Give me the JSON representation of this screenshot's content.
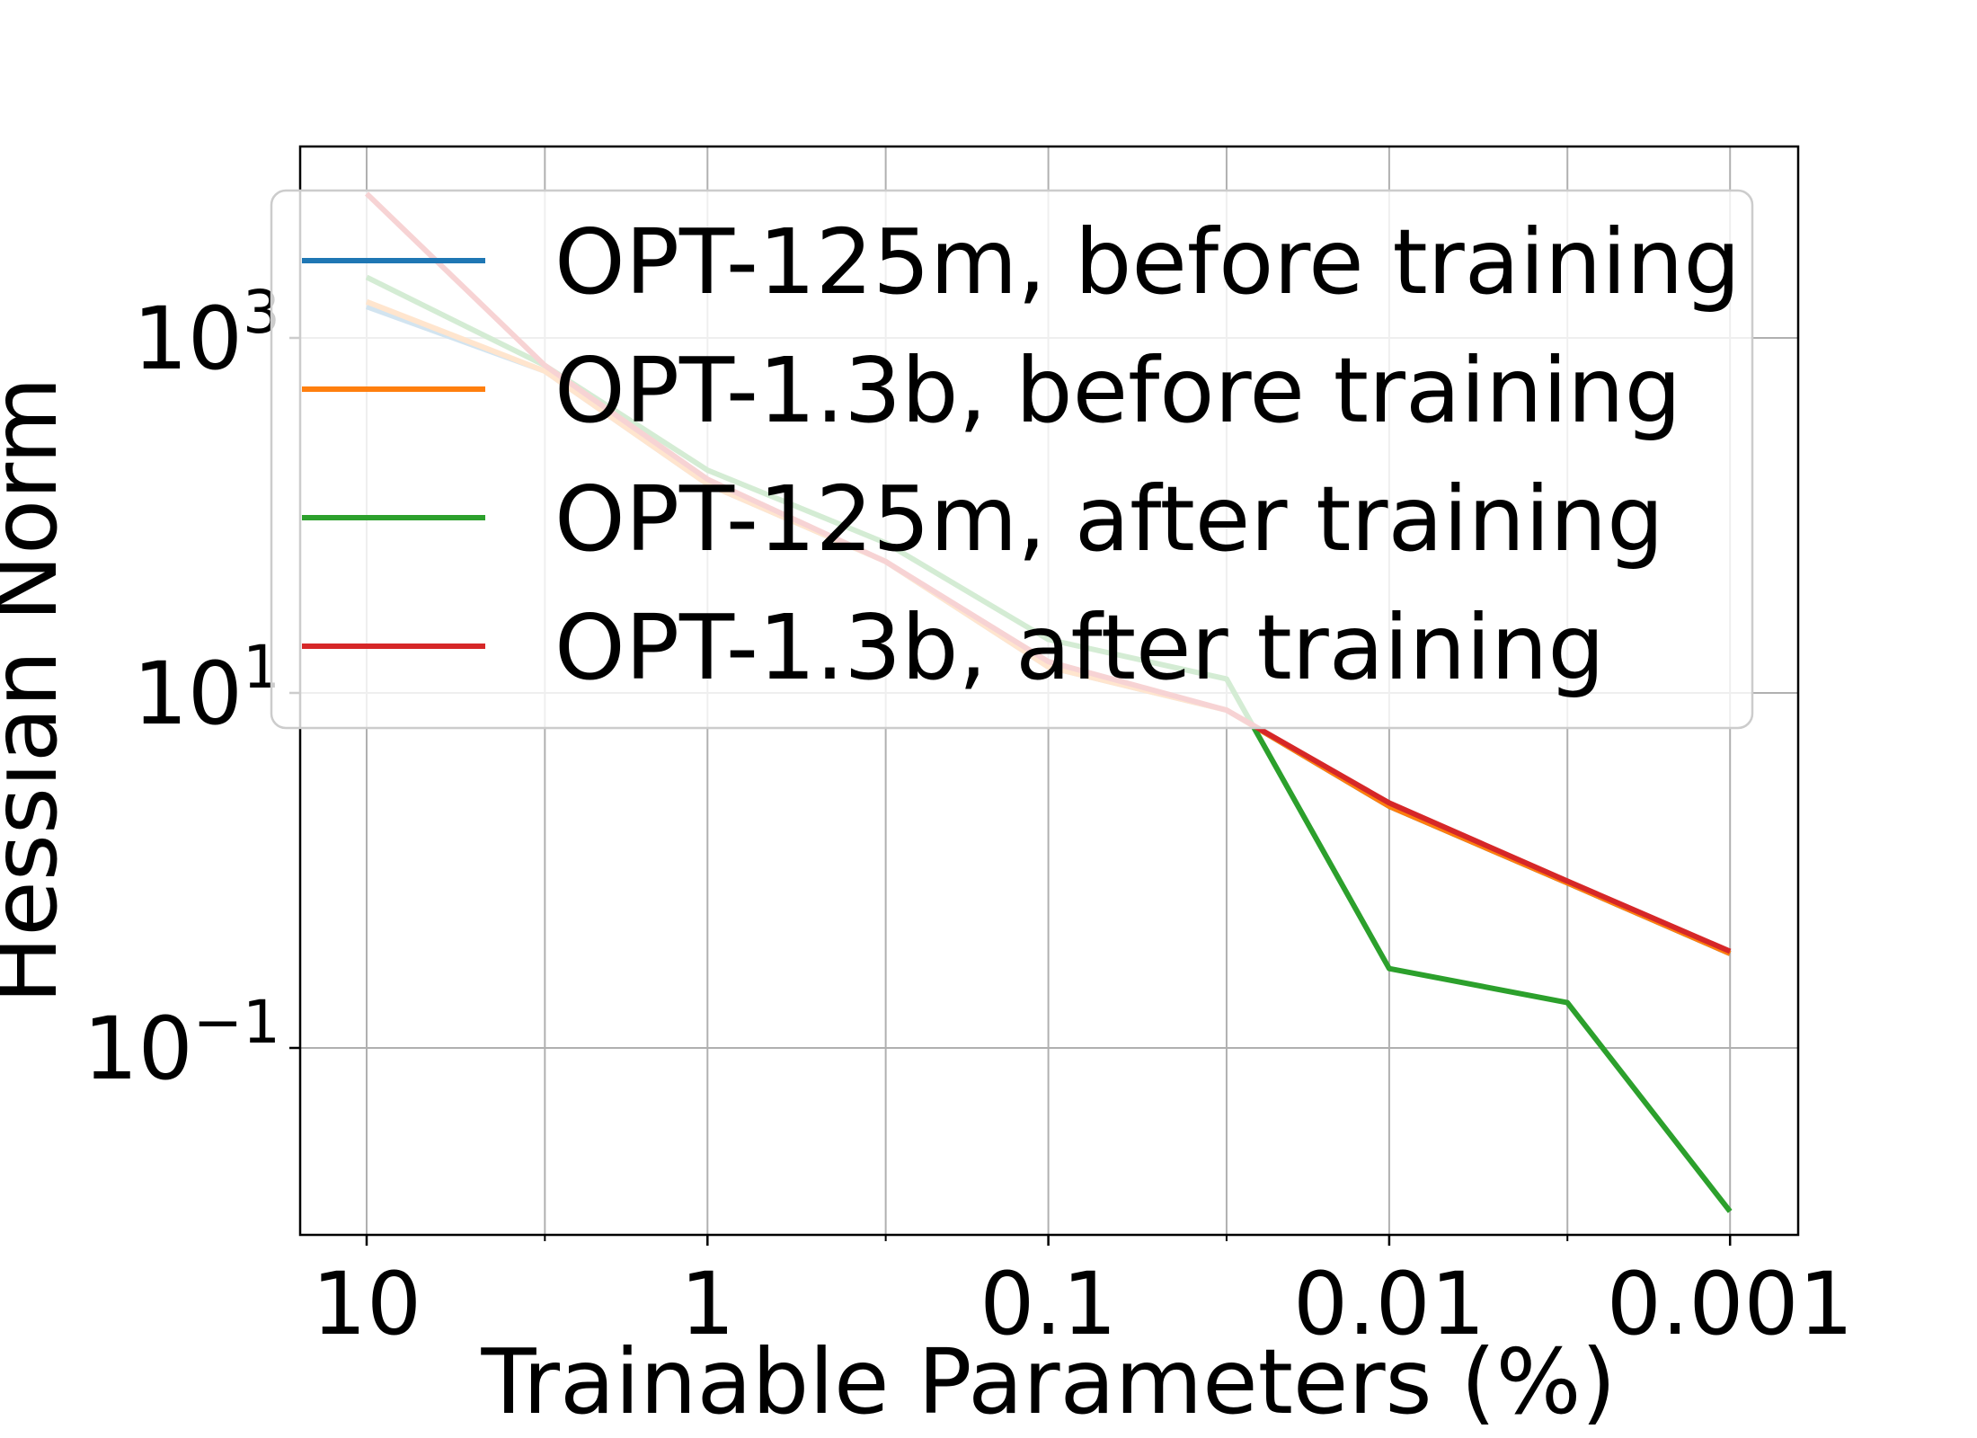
{
  "chart_data": {
    "type": "line",
    "xlabel": "Trainable Parameters (%)",
    "ylabel": "Hessian Norm",
    "x": [
      10,
      3,
      1,
      0.3,
      0.1,
      0.03,
      0.01,
      0.003,
      0.001
    ],
    "x_scale": "log",
    "x_reversed": true,
    "y_scale": "log",
    "xlim": [
      10,
      0.001
    ],
    "ylim": [
      0.005,
      10000
    ],
    "x_ticks": [
      {
        "value": 10,
        "label": "10"
      },
      {
        "value": 1,
        "label": "1"
      },
      {
        "value": 0.1,
        "label": "0.1"
      },
      {
        "value": 0.01,
        "label": "0.01"
      },
      {
        "value": 0.001,
        "label": "0.001"
      }
    ],
    "x_minor_ticks": [
      3,
      0.3,
      0.03,
      0.003
    ],
    "y_ticks": [
      {
        "value": 1000,
        "base": "10",
        "exp": "3"
      },
      {
        "value": 10,
        "base": "10",
        "exp": "1"
      },
      {
        "value": 0.1,
        "base": "10",
        "exp": "−1"
      }
    ],
    "grid": true,
    "legend_position": "top",
    "series": [
      {
        "name": "OPT-125m, before training",
        "color": "#1f77b4",
        "values": [
          1500,
          650,
          150,
          55,
          14,
          8,
          2.3,
          0.85,
          0.34
        ]
      },
      {
        "name": "OPT-1.3b, before training",
        "color": "#ff7f0e",
        "values": [
          1600,
          650,
          150,
          55,
          14,
          8,
          2.3,
          0.85,
          0.34
        ]
      },
      {
        "name": "OPT-125m, after training",
        "color": "#2ca02c",
        "values": [
          2200,
          700,
          180,
          70,
          20,
          12,
          0.28,
          0.18,
          0.012
        ]
      },
      {
        "name": "OPT-1.3b, after training",
        "color": "#d62728",
        "values": [
          6500,
          700,
          160,
          55,
          15,
          8,
          2.4,
          0.87,
          0.35
        ]
      }
    ]
  }
}
